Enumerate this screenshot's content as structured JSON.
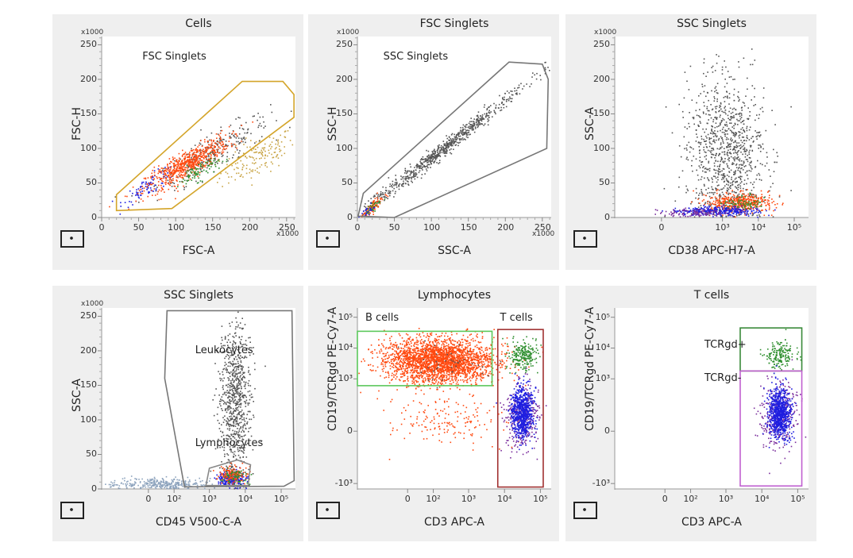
{
  "colors": {
    "gray": "#555555",
    "orange": "#ff4a10",
    "blue": "#1f1fe0",
    "green": "#2f8f2f",
    "purple": "#7a2d9c",
    "tan": "#c9a547",
    "steel": "#8da3bd",
    "panel_bg": "#efefef"
  },
  "chart_data": [
    {
      "type": "scatter",
      "title": "Cells",
      "xlabel": "FSC-A",
      "ylabel": "FSC-H",
      "x_multiplier": "x1000",
      "y_multiplier": "x1000",
      "x_axis": {
        "scale": "linear",
        "range": [
          0,
          262
        ],
        "ticks": [
          {
            "v": 0,
            "label": "0"
          },
          {
            "v": 50,
            "label": "50"
          },
          {
            "v": 100,
            "label": "100"
          },
          {
            "v": 150,
            "label": "150"
          },
          {
            "v": 200,
            "label": "200"
          },
          {
            "v": 250,
            "label": "250"
          }
        ]
      },
      "y_axis": {
        "scale": "linear",
        "range": [
          0,
          262
        ],
        "ticks": [
          {
            "v": 0,
            "label": "0"
          },
          {
            "v": 50,
            "label": "50"
          },
          {
            "v": 100,
            "label": "100"
          },
          {
            "v": 150,
            "label": "150"
          },
          {
            "v": 200,
            "label": "200"
          },
          {
            "v": 250,
            "label": "250"
          }
        ]
      },
      "populations": [
        {
          "color": "tan",
          "n": 160,
          "x": [
            210,
            25
          ],
          "y": [
            88,
            14
          ],
          "slope": 0.45
        },
        {
          "color": "gray",
          "n": 260,
          "x": [
            150,
            38
          ],
          "y": [
            95,
            13
          ],
          "slope": 0.6
        },
        {
          "color": "blue",
          "n": 90,
          "x": [
            65,
            18
          ],
          "y": [
            48,
            7
          ],
          "slope": 0.6
        },
        {
          "color": "orange",
          "n": 650,
          "x": [
            115,
            28
          ],
          "y": [
            78,
            10
          ],
          "slope": 0.6
        },
        {
          "color": "green",
          "n": 90,
          "x": [
            130,
            14
          ],
          "y": [
            68,
            7
          ],
          "slope": 0.5
        }
      ],
      "gates": [
        {
          "name": "FSC Singlets",
          "shape": "polygon",
          "color": "#d4a52a",
          "points": [
            [
              20,
              10
            ],
            [
              95,
              13
            ],
            [
              260,
              145
            ],
            [
              260,
              178
            ],
            [
              245,
              197
            ],
            [
              190,
              197
            ],
            [
              20,
              33
            ]
          ],
          "label_at": [
            55,
            232
          ]
        }
      ]
    },
    {
      "type": "scatter",
      "title": "FSC Singlets",
      "xlabel": "SSC-A",
      "ylabel": "SSC-H",
      "x_multiplier": "x1000",
      "y_multiplier": "x1000",
      "x_axis": {
        "scale": "linear",
        "range": [
          0,
          262
        ],
        "ticks": [
          {
            "v": 0,
            "label": "0"
          },
          {
            "v": 50,
            "label": "50"
          },
          {
            "v": 100,
            "label": "100"
          },
          {
            "v": 150,
            "label": "150"
          },
          {
            "v": 200,
            "label": "200"
          },
          {
            "v": 250,
            "label": "250"
          }
        ]
      },
      "y_axis": {
        "scale": "linear",
        "range": [
          0,
          262
        ],
        "ticks": [
          {
            "v": 0,
            "label": "0"
          },
          {
            "v": 50,
            "label": "50"
          },
          {
            "v": 100,
            "label": "100"
          },
          {
            "v": 150,
            "label": "150"
          },
          {
            "v": 200,
            "label": "200"
          },
          {
            "v": 250,
            "label": "250"
          }
        ]
      },
      "populations": [
        {
          "color": "gray",
          "n": 750,
          "x": [
            115,
            55
          ],
          "y": [
            100,
            6
          ],
          "slope": 0.82
        },
        {
          "color": "orange",
          "n": 90,
          "x": [
            20,
            7
          ],
          "y": [
            16,
            4
          ],
          "slope": 0.8
        },
        {
          "color": "blue",
          "n": 30,
          "x": [
            12,
            5
          ],
          "y": [
            9,
            3
          ],
          "slope": 0.8
        },
        {
          "color": "green",
          "n": 25,
          "x": [
            22,
            5
          ],
          "y": [
            17,
            3
          ],
          "slope": 0.8
        }
      ],
      "gates": [
        {
          "name": "SSC Singlets",
          "shape": "polygon",
          "color": "#777777",
          "points": [
            [
              1,
              2
            ],
            [
              8,
              35
            ],
            [
              205,
              225
            ],
            [
              250,
              222
            ],
            [
              258,
              200
            ],
            [
              256,
              100
            ],
            [
              50,
              0
            ]
          ],
          "label_at": [
            35,
            232
          ]
        }
      ]
    },
    {
      "type": "scatter",
      "title": "SSC Singlets",
      "xlabel": "CD38 APC-H7-A",
      "ylabel": "SSC-A",
      "y_multiplier": "x1000",
      "x_axis": {
        "scale": "biexponential",
        "range": [
          -400,
          250000
        ],
        "ticks": [
          {
            "v": 0,
            "label": "0"
          },
          {
            "v": 1000,
            "label": "10³"
          },
          {
            "v": 10000,
            "label": "10⁴"
          },
          {
            "v": 100000,
            "label": "10⁵"
          }
        ]
      },
      "y_axis": {
        "scale": "linear",
        "range": [
          0,
          262
        ],
        "ticks": [
          {
            "v": 0,
            "label": "0"
          },
          {
            "v": 50,
            "label": "50"
          },
          {
            "v": 100,
            "label": "100"
          },
          {
            "v": 150,
            "label": "150"
          },
          {
            "v": 200,
            "label": "200"
          },
          {
            "v": 250,
            "label": "250"
          }
        ]
      },
      "populations": [
        {
          "color": "gray",
          "n": 1000,
          "x": [
            1200,
            0.55
          ],
          "y": [
            95,
            55
          ]
        },
        {
          "color": "orange",
          "n": 450,
          "x": [
            2500,
            0.45
          ],
          "y": [
            22,
            7
          ]
        },
        {
          "color": "green",
          "n": 70,
          "x": [
            4000,
            0.3
          ],
          "y": [
            22,
            5
          ]
        },
        {
          "color": "blue",
          "n": 320,
          "x": [
            700,
            0.6
          ],
          "y": [
            10,
            3
          ]
        },
        {
          "color": "purple",
          "n": 110,
          "x": [
            150,
            0.5
          ],
          "y": [
            8,
            3
          ]
        }
      ],
      "gates": []
    },
    {
      "type": "scatter",
      "title": "SSC Singlets",
      "xlabel": "CD45 V500-C-A",
      "ylabel": "SSC-A",
      "y_multiplier": "x1000",
      "x_axis": {
        "scale": "biexponential",
        "range": [
          -400,
          250000
        ],
        "ticks": [
          {
            "v": 0,
            "label": "0"
          },
          {
            "v": 100,
            "label": "10²"
          },
          {
            "v": 1000,
            "label": "10³"
          },
          {
            "v": 10000,
            "label": "10⁴"
          },
          {
            "v": 100000,
            "label": "10⁵"
          }
        ]
      },
      "y_axis": {
        "scale": "linear",
        "range": [
          0,
          262
        ],
        "ticks": [
          {
            "v": 0,
            "label": "0"
          },
          {
            "v": 50,
            "label": "50"
          },
          {
            "v": 100,
            "label": "100"
          },
          {
            "v": 150,
            "label": "150"
          },
          {
            "v": 200,
            "label": "200"
          },
          {
            "v": 250,
            "label": "250"
          }
        ]
      },
      "populations": [
        {
          "color": "steel",
          "n": 320,
          "x": [
            30,
            0.7
          ],
          "y": [
            8,
            4
          ]
        },
        {
          "color": "gray",
          "n": 800,
          "x": [
            5000,
            0.22
          ],
          "y": [
            130,
            60
          ]
        },
        {
          "color": "blue",
          "n": 220,
          "x": [
            4000,
            0.2
          ],
          "y": [
            15,
            6
          ]
        },
        {
          "color": "orange",
          "n": 160,
          "x": [
            4500,
            0.2
          ],
          "y": [
            22,
            6
          ]
        },
        {
          "color": "green",
          "n": 60,
          "x": [
            5000,
            0.15
          ],
          "y": [
            18,
            5
          ]
        }
      ],
      "gates": [
        {
          "name": "Leukocytes",
          "shape": "polygon",
          "color": "#777777",
          "points": [
            [
              60,
              258
            ],
            [
              200000,
              258
            ],
            [
              230000,
              12
            ],
            [
              120000,
              4
            ],
            [
              200,
              3
            ],
            [
              50,
              160
            ]
          ],
          "label_at": [
            400,
            200
          ]
        },
        {
          "name": "Lymphocytes",
          "shape": "polygon",
          "color": "#888888",
          "points": [
            [
              800,
              5
            ],
            [
              12000,
              5
            ],
            [
              14000,
              35
            ],
            [
              6000,
              42
            ],
            [
              1000,
              30
            ]
          ],
          "label_at": [
            400,
            65
          ]
        }
      ]
    },
    {
      "type": "scatter",
      "title": "Lymphocytes",
      "xlabel": "CD3 APC-A",
      "ylabel": "CD19/TCRgd PE-Cy7-A",
      "x_axis": {
        "scale": "biexponential",
        "range": [
          -500,
          200000
        ],
        "ticks": [
          {
            "v": 0,
            "label": "0"
          },
          {
            "v": 100,
            "label": "10²"
          },
          {
            "v": 1000,
            "label": "10³"
          },
          {
            "v": 10000,
            "label": "10⁴"
          },
          {
            "v": 100000,
            "label": "10⁵"
          }
        ]
      },
      "y_axis": {
        "scale": "biexponential",
        "range": [
          -1500,
          200000
        ],
        "ticks": [
          {
            "v": -1000,
            "label": "-10³"
          },
          {
            "v": 0,
            "label": "0"
          },
          {
            "v": 1000,
            "label": "10³"
          },
          {
            "v": 10000,
            "label": "10⁴"
          },
          {
            "v": 100000,
            "label": "10⁵"
          }
        ]
      },
      "populations": [
        {
          "color": "orange",
          "n": 170,
          "x": [
            200,
            0.8
          ],
          "y": [
            40,
            0.45
          ]
        },
        {
          "color": "orange",
          "n": 2600,
          "x": [
            150,
            0.75
          ],
          "y": [
            4000,
            0.35
          ]
        },
        {
          "color": "gray",
          "n": 40,
          "x": [
            150,
            0.6
          ],
          "y": [
            4000,
            0.3
          ]
        },
        {
          "color": "green",
          "n": 220,
          "x": [
            30000,
            0.2
          ],
          "y": [
            6000,
            0.22
          ]
        },
        {
          "color": "purple",
          "n": 320,
          "x": [
            30000,
            0.25
          ],
          "y": [
            60,
            0.55
          ]
        },
        {
          "color": "blue",
          "n": 750,
          "x": [
            30000,
            0.15
          ],
          "y": [
            80,
            0.4
          ]
        }
      ],
      "gates": [
        {
          "name": "B cells",
          "shape": "rect",
          "color": "#5cc85c",
          "points": [
            [
              -500,
              600
            ],
            [
              4500,
              35000
            ]
          ],
          "label_at": [
            -300,
            90000
          ]
        },
        {
          "name": "T cells",
          "shape": "rect",
          "color": "#a03030",
          "points": [
            [
              6500,
              -1300
            ],
            [
              120000,
              40000
            ]
          ],
          "label_at": [
            7500,
            90000
          ]
        }
      ]
    },
    {
      "type": "scatter",
      "title": "T cells",
      "xlabel": "CD3 APC-A",
      "ylabel": "CD19/TCRgd PE-Cy7-A",
      "x_axis": {
        "scale": "biexponential",
        "range": [
          -500,
          200000
        ],
        "ticks": [
          {
            "v": 0,
            "label": "0"
          },
          {
            "v": 100,
            "label": "10²"
          },
          {
            "v": 1000,
            "label": "10³"
          },
          {
            "v": 10000,
            "label": "10⁴"
          },
          {
            "v": 100000,
            "label": "10⁵"
          }
        ]
      },
      "y_axis": {
        "scale": "biexponential",
        "range": [
          -1500,
          200000
        ],
        "ticks": [
          {
            "v": -1000,
            "label": "-10³"
          },
          {
            "v": 0,
            "label": "0"
          },
          {
            "v": 1000,
            "label": "10³"
          },
          {
            "v": 10000,
            "label": "10⁴"
          },
          {
            "v": 100000,
            "label": "10⁵"
          }
        ]
      },
      "populations": [
        {
          "color": "green",
          "n": 170,
          "x": [
            30000,
            0.2
          ],
          "y": [
            6000,
            0.22
          ]
        },
        {
          "color": "purple",
          "n": 320,
          "x": [
            30000,
            0.25
          ],
          "y": [
            60,
            0.55
          ]
        },
        {
          "color": "blue",
          "n": 800,
          "x": [
            30000,
            0.15
          ],
          "y": [
            80,
            0.4
          ]
        }
      ],
      "gates": [
        {
          "name": "TCRgd+",
          "shape": "rect",
          "color": "#3a8a3a",
          "points": [
            [
              2500,
              1800
            ],
            [
              130000,
              45000
            ]
          ],
          "label_at": [
            250,
            12000
          ]
        },
        {
          "name": "TCRgd-",
          "shape": "rect",
          "color": "#c060d0",
          "points": [
            [
              2500,
              -1200
            ],
            [
              130000,
              1800
            ]
          ],
          "label_at": [
            250,
            1000
          ]
        }
      ]
    }
  ]
}
